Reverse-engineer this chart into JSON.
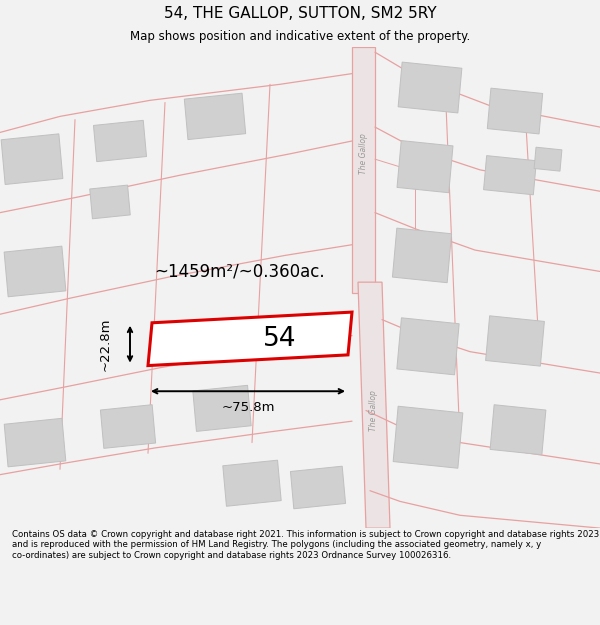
{
  "title": "54, THE GALLOP, SUTTON, SM2 5RY",
  "subtitle": "Map shows position and indicative extent of the property.",
  "footer": "Contains OS data © Crown copyright and database right 2021. This information is subject to Crown copyright and database rights 2023 and is reproduced with the permission of HM Land Registry. The polygons (including the associated geometry, namely x, y co-ordinates) are subject to Crown copyright and database rights 2023 Ordnance Survey 100026316.",
  "bg_color": "#f2f2f2",
  "map_bg": "#f8f8f8",
  "road_color": "#e8a0a0",
  "building_color": "#d0d0d0",
  "building_edge": "#c0c0c0",
  "highlight_color": "#ff0000",
  "text_color": "#000000",
  "area_text": "~1459m²/~0.360ac.",
  "number_text": "54",
  "width_text": "~75.8m",
  "height_text": "~22.8m",
  "road_label": "The Gallop",
  "title_fontsize": 11,
  "subtitle_fontsize": 8.5,
  "footer_fontsize": 6.2
}
